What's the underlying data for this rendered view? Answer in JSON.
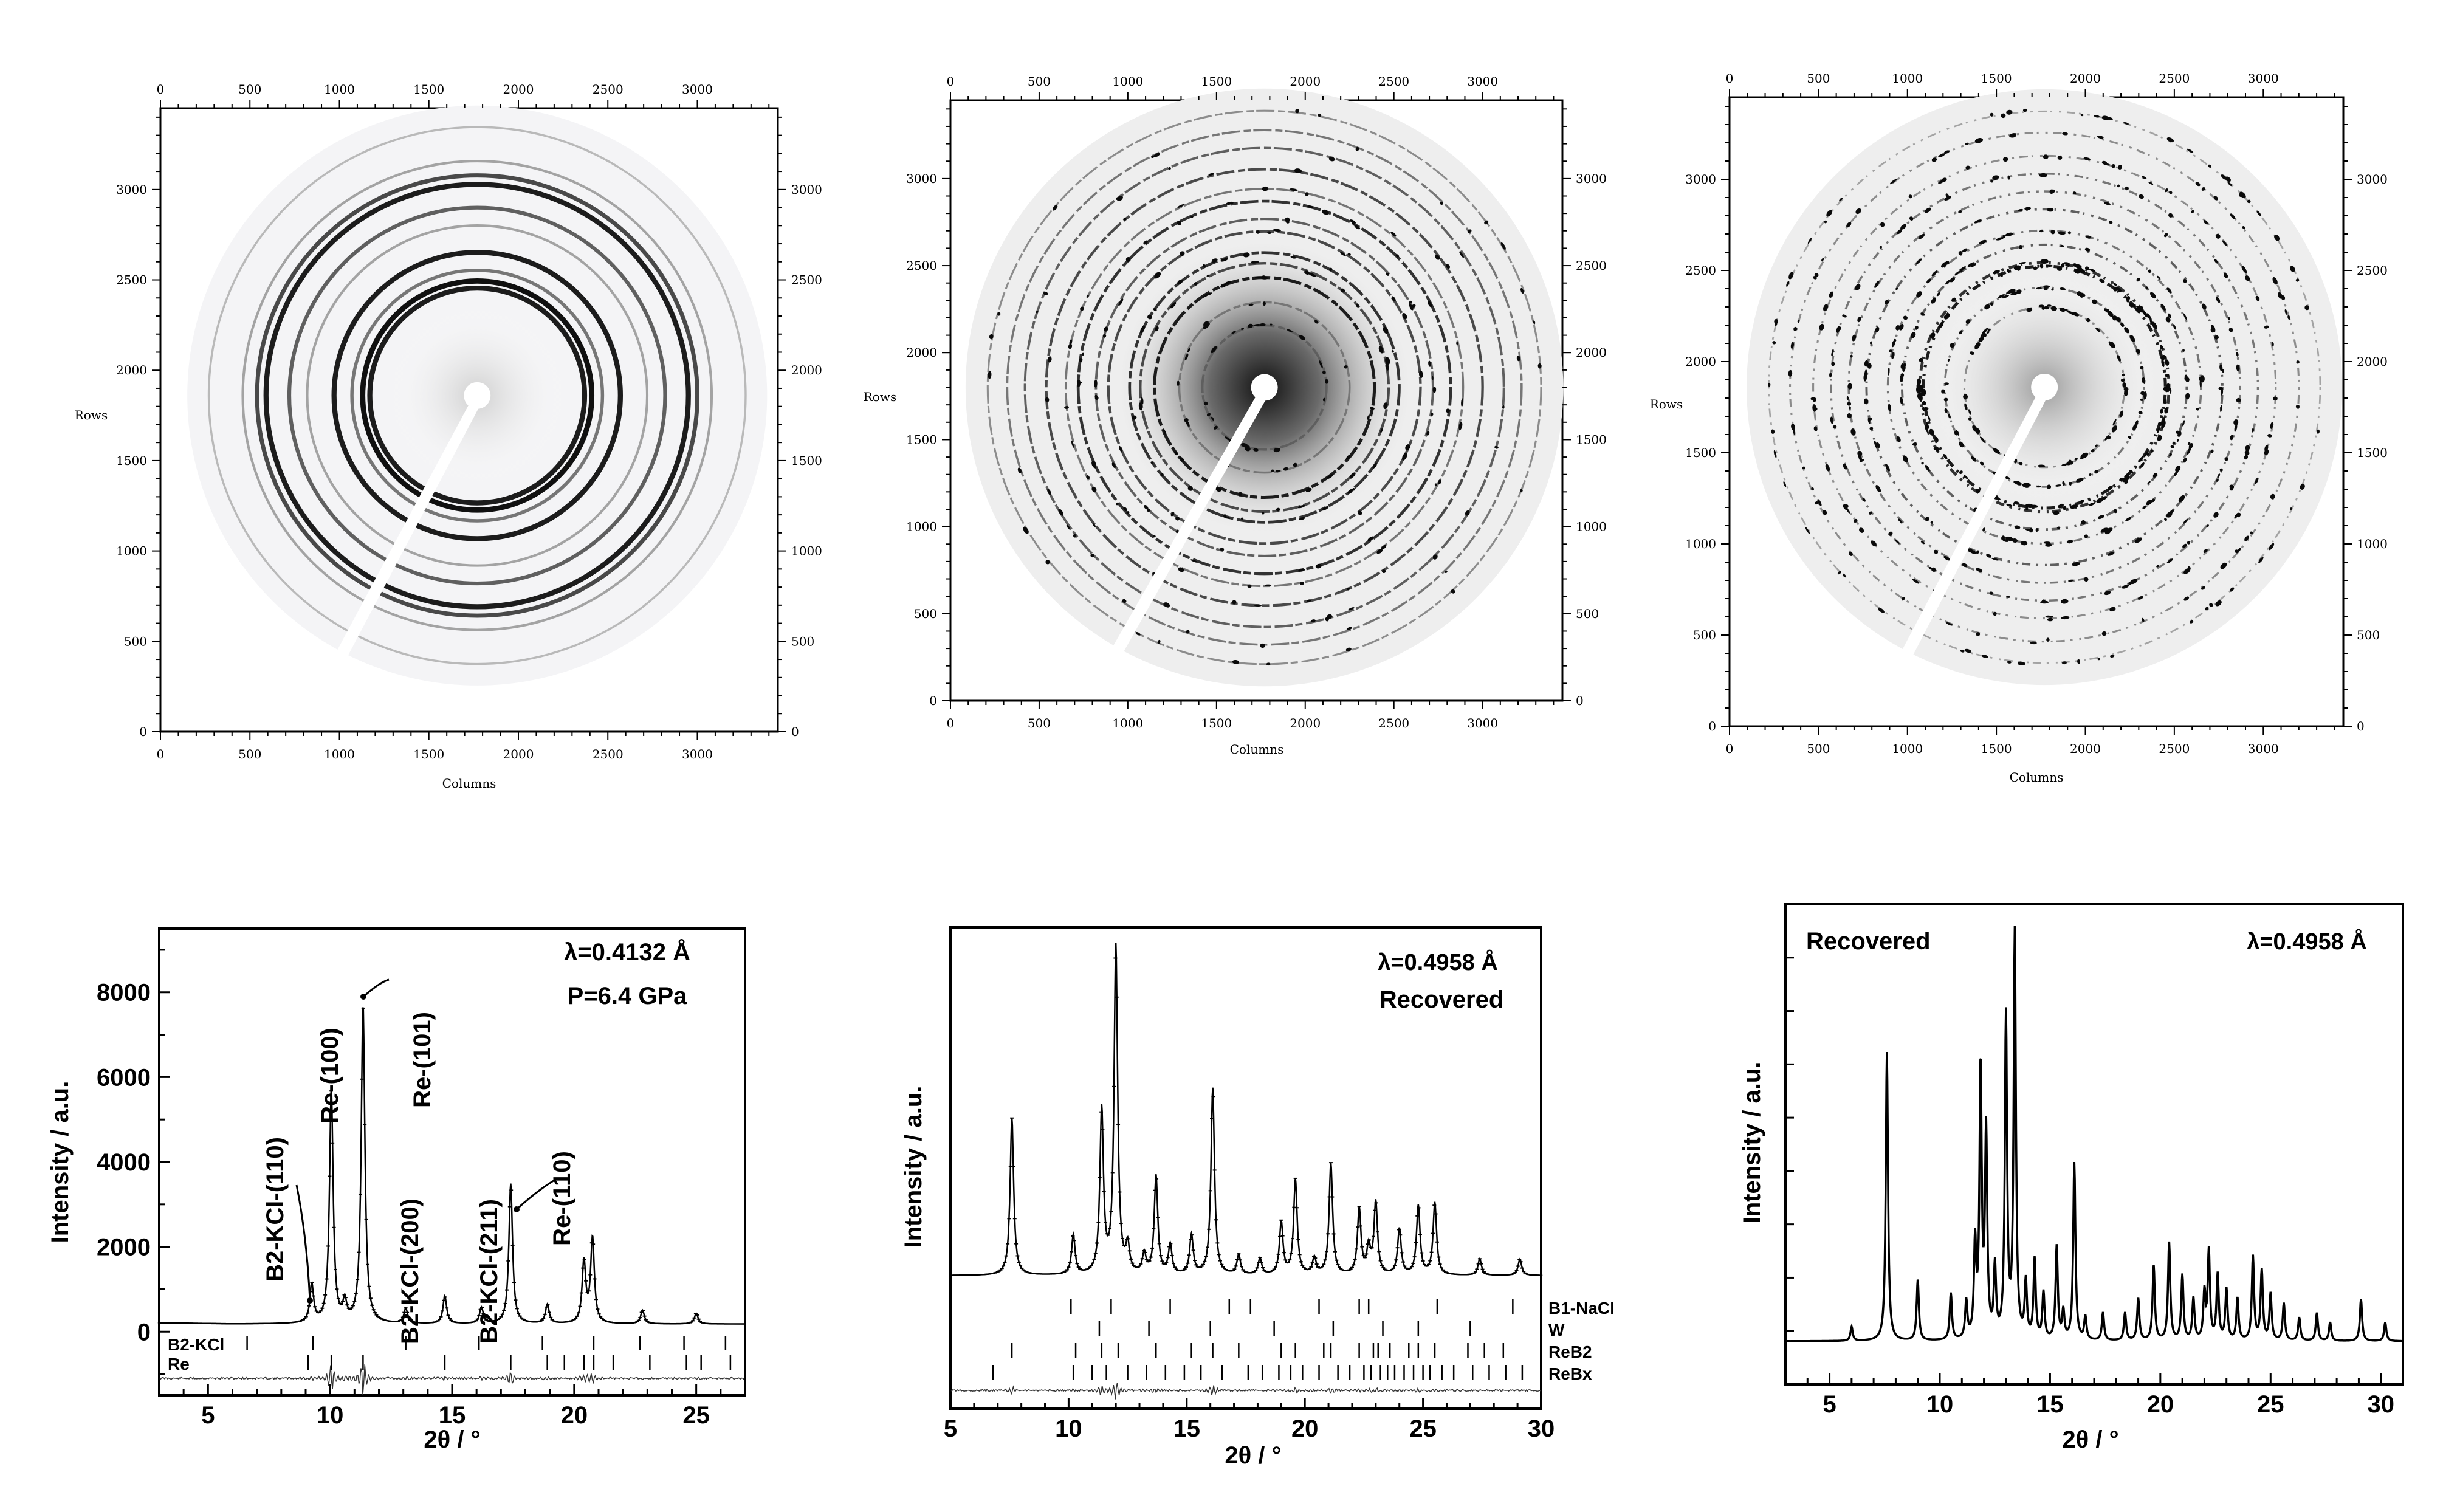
{
  "images": [
    {
      "name": "detector-image-1",
      "x_label": "Columns",
      "y_label": "Rows",
      "x_ticks": [
        0,
        500,
        1000,
        1500,
        2000,
        2500,
        3000
      ],
      "y_ticks": [
        0,
        500,
        1000,
        1500,
        2000,
        2500,
        3000
      ],
      "x_range": [
        0,
        3450
      ],
      "y_range": [
        0,
        3450
      ],
      "beam_center": [
        1770,
        1860
      ],
      "ring_radii": [
        600,
        640,
        700,
        800,
        950,
        1050,
        1180,
        1230,
        1310,
        1500
      ],
      "ring_weights": [
        0.9,
        0.95,
        0.5,
        0.9,
        0.3,
        0.6,
        0.9,
        0.7,
        0.3,
        0.2
      ]
    },
    {
      "name": "detector-image-2",
      "x_label": "Columns",
      "y_label": "Rows",
      "x_ticks": [
        0,
        500,
        1000,
        1500,
        2000,
        2500,
        3000
      ],
      "y_ticks": [
        0,
        500,
        1000,
        1500,
        2000,
        2500,
        3000
      ],
      "x_range": [
        0,
        3450
      ],
      "y_range": [
        0,
        3450
      ],
      "beam_center": [
        1770,
        1800
      ],
      "ring_radii": [
        350,
        480,
        620,
        700,
        760,
        880,
        950,
        1050,
        1120,
        1230,
        1350,
        1450,
        1560
      ],
      "ring_weights": [
        0.6,
        0.5,
        0.9,
        0.7,
        0.8,
        0.7,
        0.6,
        0.8,
        0.5,
        0.7,
        0.6,
        0.5,
        0.4
      ]
    },
    {
      "name": "detector-image-3",
      "x_label": "Columns",
      "y_label": "Rows",
      "x_ticks": [
        0,
        500,
        1000,
        1500,
        2000,
        2500,
        3000
      ],
      "y_ticks": [
        0,
        500,
        1000,
        1500,
        2000,
        2500,
        3000
      ],
      "x_range": [
        0,
        3450
      ],
      "y_range": [
        0,
        3450
      ],
      "beam_center": [
        1770,
        1860
      ],
      "ring_radii": [
        450,
        560,
        680,
        700,
        800,
        880,
        1000,
        1100,
        1200,
        1300,
        1430,
        1550
      ],
      "ring_weights": [
        0.4,
        0.5,
        0.9,
        0.8,
        0.6,
        0.5,
        0.6,
        0.5,
        0.5,
        0.4,
        0.4,
        0.3
      ]
    }
  ],
  "chart_data": [
    {
      "type": "line",
      "xlabel": "2θ / °",
      "ylabel": "Intensity / a.u.",
      "xlim": [
        3,
        27
      ],
      "ylim": [
        -1500,
        9500
      ],
      "x_ticks": [
        5,
        10,
        15,
        20,
        25
      ],
      "y_ticks": [
        0,
        2000,
        4000,
        6000,
        8000
      ],
      "annotations": [
        "λ=0.4132 Å",
        "P=6.4 GPa"
      ],
      "background": 180,
      "peaks": [
        {
          "x": 9.25,
          "y": 900,
          "label": "B2-KCl-(110)"
        },
        {
          "x": 10.05,
          "y": 5500,
          "label": "Re-(100)"
        },
        {
          "x": 10.6,
          "y": 450,
          "label": ""
        },
        {
          "x": 11.35,
          "y": 7500,
          "label": "Re-(101)"
        },
        {
          "x": 13.1,
          "y": 350,
          "label": "B2-KCl-(200)"
        },
        {
          "x": 14.7,
          "y": 650,
          "label": ""
        },
        {
          "x": 16.2,
          "y": 380,
          "label": "B2-KCl-(211)"
        },
        {
          "x": 17.4,
          "y": 3300,
          "label": "Re-(110)"
        },
        {
          "x": 18.9,
          "y": 450,
          "label": ""
        },
        {
          "x": 20.4,
          "y": 1450,
          "label": ""
        },
        {
          "x": 20.75,
          "y": 2000,
          "label": ""
        },
        {
          "x": 22.8,
          "y": 320,
          "label": ""
        },
        {
          "x": 25.0,
          "y": 250,
          "label": ""
        }
      ],
      "tick_rows": [
        {
          "name": "B2-KCl",
          "positions": [
            6.6,
            9.3,
            13.1,
            16.1,
            18.7,
            20.8,
            22.7,
            24.5,
            26.2
          ]
        },
        {
          "name": "Re",
          "positions": [
            9.1,
            10.05,
            11.35,
            14.7,
            17.4,
            18.9,
            19.6,
            20.4,
            20.8,
            21.6,
            23.1,
            24.6,
            25.2,
            26.4
          ]
        }
      ]
    },
    {
      "type": "line",
      "xlabel": "2θ / °",
      "ylabel": "Intensity / a.u.",
      "xlim": [
        5,
        30
      ],
      "x_ticks": [
        5,
        10,
        15,
        20,
        25,
        30
      ],
      "annotations": [
        "λ=0.4958 Å",
        "Recovered"
      ],
      "background": 0.05,
      "peaks": [
        {
          "x": 7.6,
          "y": 0.48
        },
        {
          "x": 10.2,
          "y": 0.12
        },
        {
          "x": 11.4,
          "y": 0.5
        },
        {
          "x": 12.0,
          "y": 1.0
        },
        {
          "x": 12.5,
          "y": 0.08
        },
        {
          "x": 13.2,
          "y": 0.06
        },
        {
          "x": 13.7,
          "y": 0.3
        },
        {
          "x": 14.3,
          "y": 0.09
        },
        {
          "x": 15.2,
          "y": 0.12
        },
        {
          "x": 16.1,
          "y": 0.57
        },
        {
          "x": 17.2,
          "y": 0.06
        },
        {
          "x": 18.1,
          "y": 0.05
        },
        {
          "x": 19.0,
          "y": 0.16
        },
        {
          "x": 19.6,
          "y": 0.29
        },
        {
          "x": 20.4,
          "y": 0.05
        },
        {
          "x": 21.1,
          "y": 0.34
        },
        {
          "x": 22.3,
          "y": 0.2
        },
        {
          "x": 22.7,
          "y": 0.08
        },
        {
          "x": 23.0,
          "y": 0.22
        },
        {
          "x": 24.0,
          "y": 0.14
        },
        {
          "x": 24.8,
          "y": 0.21
        },
        {
          "x": 25.5,
          "y": 0.22
        },
        {
          "x": 27.4,
          "y": 0.05
        },
        {
          "x": 29.1,
          "y": 0.05
        }
      ],
      "tick_rows": [
        {
          "name": "B1-NaCl",
          "positions": [
            10.1,
            11.8,
            14.3,
            16.8,
            17.7,
            20.6,
            22.3,
            22.7,
            25.6,
            28.8
          ]
        },
        {
          "name": "W",
          "positions": [
            11.3,
            13.4,
            16.0,
            18.7,
            21.2,
            23.3,
            24.8,
            27.0
          ]
        },
        {
          "name": "ReB2",
          "positions": [
            7.6,
            10.3,
            11.4,
            12.1,
            13.7,
            15.2,
            16.1,
            17.2,
            19.0,
            19.6,
            20.8,
            21.1,
            22.3,
            22.9,
            23.1,
            23.6,
            24.4,
            24.8,
            25.5,
            26.9,
            27.6,
            28.4
          ]
        },
        {
          "name": "ReBx",
          "positions": [
            6.8,
            10.2,
            11.0,
            11.6,
            12.5,
            13.3,
            14.1,
            14.9,
            15.6,
            16.5,
            17.6,
            18.2,
            18.9,
            19.4,
            19.9,
            20.6,
            21.4,
            21.9,
            22.5,
            22.8,
            23.2,
            23.5,
            23.8,
            24.2,
            24.6,
            25.0,
            25.3,
            25.8,
            26.3,
            27.1,
            27.8,
            28.5,
            29.2
          ]
        }
      ]
    },
    {
      "type": "line",
      "xlabel": "2θ / °",
      "ylabel": "Intensity / a.u.",
      "xlim": [
        3,
        31
      ],
      "x_ticks": [
        5,
        10,
        15,
        20,
        25,
        30
      ],
      "annotations": [
        "Recovered",
        "λ=0.4958 Å"
      ],
      "background": 0.03,
      "peaks": [
        {
          "x": 6.0,
          "y": 0.03
        },
        {
          "x": 7.6,
          "y": 0.62
        },
        {
          "x": 9.0,
          "y": 0.13
        },
        {
          "x": 10.5,
          "y": 0.1
        },
        {
          "x": 11.2,
          "y": 0.08
        },
        {
          "x": 11.6,
          "y": 0.2
        },
        {
          "x": 11.85,
          "y": 0.58
        },
        {
          "x": 12.1,
          "y": 0.44
        },
        {
          "x": 12.5,
          "y": 0.15
        },
        {
          "x": 13.0,
          "y": 0.69
        },
        {
          "x": 13.4,
          "y": 0.87
        },
        {
          "x": 13.9,
          "y": 0.12
        },
        {
          "x": 14.3,
          "y": 0.17
        },
        {
          "x": 14.7,
          "y": 0.1
        },
        {
          "x": 15.3,
          "y": 0.2
        },
        {
          "x": 15.6,
          "y": 0.06
        },
        {
          "x": 16.1,
          "y": 0.38
        },
        {
          "x": 16.6,
          "y": 0.05
        },
        {
          "x": 17.4,
          "y": 0.06
        },
        {
          "x": 18.4,
          "y": 0.06
        },
        {
          "x": 19.0,
          "y": 0.09
        },
        {
          "x": 19.7,
          "y": 0.16
        },
        {
          "x": 20.4,
          "y": 0.21
        },
        {
          "x": 21.0,
          "y": 0.14
        },
        {
          "x": 21.5,
          "y": 0.09
        },
        {
          "x": 22.0,
          "y": 0.1
        },
        {
          "x": 22.2,
          "y": 0.19
        },
        {
          "x": 22.6,
          "y": 0.14
        },
        {
          "x": 23.0,
          "y": 0.11
        },
        {
          "x": 23.5,
          "y": 0.09
        },
        {
          "x": 24.2,
          "y": 0.18
        },
        {
          "x": 24.6,
          "y": 0.15
        },
        {
          "x": 25.0,
          "y": 0.1
        },
        {
          "x": 25.6,
          "y": 0.08
        },
        {
          "x": 26.3,
          "y": 0.05
        },
        {
          "x": 27.1,
          "y": 0.06
        },
        {
          "x": 27.7,
          "y": 0.04
        },
        {
          "x": 29.1,
          "y": 0.09
        },
        {
          "x": 30.2,
          "y": 0.04
        }
      ]
    }
  ]
}
